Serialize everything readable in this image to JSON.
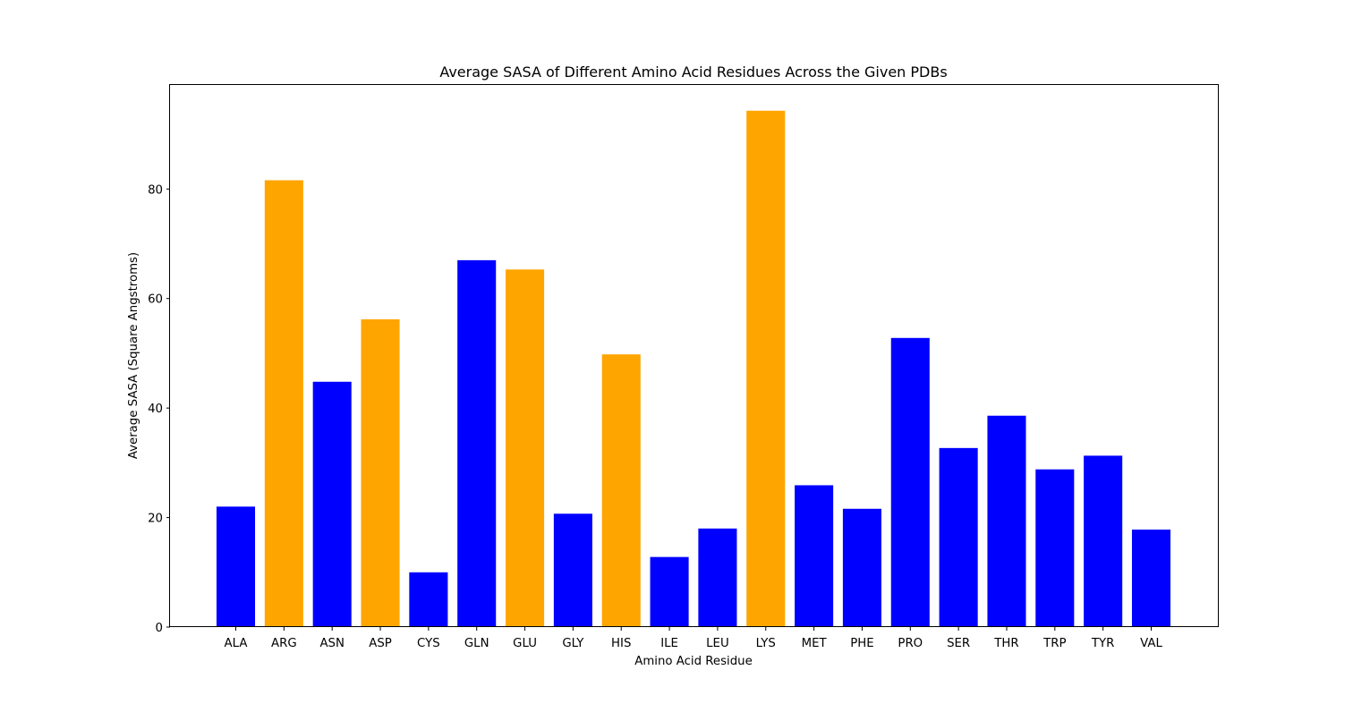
{
  "chart_data": {
    "type": "bar",
    "title": "Average SASA of Different Amino Acid Residues Across the Given PDBs",
    "xlabel": "Amino Acid Residue",
    "ylabel": "Average SASA (Square Angstroms)",
    "ylim": [
      0,
      99
    ],
    "yticks": [
      0,
      20,
      40,
      60,
      80
    ],
    "grid": false,
    "categories": [
      "ALA",
      "ARG",
      "ASN",
      "ASP",
      "CYS",
      "GLN",
      "GLU",
      "GLY",
      "HIS",
      "ILE",
      "LEU",
      "LYS",
      "MET",
      "PHE",
      "PRO",
      "SER",
      "THR",
      "TRP",
      "TYR",
      "VAL"
    ],
    "values": [
      22.0,
      81.6,
      44.8,
      56.2,
      10.0,
      67.0,
      65.3,
      20.7,
      49.8,
      12.8,
      18.0,
      94.3,
      25.9,
      21.6,
      52.8,
      32.7,
      38.6,
      28.8,
      31.3,
      17.8
    ],
    "bar_colors": [
      "#0000ff",
      "#ffa500",
      "#0000ff",
      "#ffa500",
      "#0000ff",
      "#0000ff",
      "#ffa500",
      "#0000ff",
      "#ffa500",
      "#0000ff",
      "#0000ff",
      "#ffa500",
      "#0000ff",
      "#0000ff",
      "#0000ff",
      "#0000ff",
      "#0000ff",
      "#0000ff",
      "#0000ff",
      "#0000ff"
    ]
  }
}
